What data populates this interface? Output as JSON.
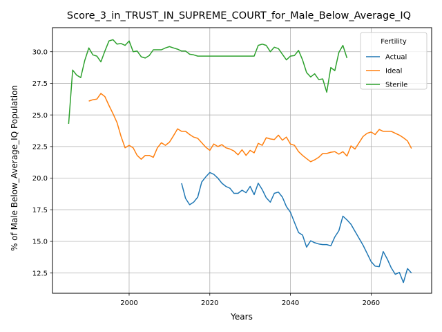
{
  "chart_data": {
    "type": "line",
    "title": "Score_3_in_TRUST_IN_SUPREME_COURT_for_Male_Below_Average_IQ",
    "xlabel": "Years",
    "ylabel": "% of Male Below_Average_IQ Population",
    "xlim": [
      1981,
      2075
    ],
    "ylim": [
      10.9,
      31.9
    ],
    "xticks": [
      2000,
      2020,
      2040,
      2060
    ],
    "yticks": [
      12.5,
      15.0,
      17.5,
      20.0,
      22.5,
      25.0,
      27.5,
      30.0
    ],
    "ytick_labels": [
      "12.5",
      "15.0",
      "17.5",
      "20.0",
      "22.5",
      "25.0",
      "27.5",
      "30.0"
    ],
    "grid": true,
    "legend": {
      "title": "Fertility",
      "placement": "top-right"
    },
    "series": [
      {
        "name": "Actual",
        "color": "#1f77b4",
        "x": [
          2013,
          2014,
          2015,
          2016,
          2017,
          2018,
          2019,
          2020,
          2021,
          2022,
          2023,
          2024,
          2025,
          2026,
          2027,
          2028,
          2029,
          2030,
          2031,
          2032,
          2033,
          2034,
          2035,
          2036,
          2037,
          2038,
          2039,
          2040,
          2041,
          2042,
          2043,
          2044,
          2045,
          2046,
          2047,
          2048,
          2049,
          2050,
          2051,
          2052,
          2053,
          2054,
          2055,
          2056,
          2057,
          2058,
          2059,
          2060,
          2061,
          2062,
          2063,
          2064,
          2065,
          2066,
          2067,
          2068,
          2069,
          2070
        ],
        "values": [
          19.6,
          18.4,
          17.9,
          18.1,
          18.5,
          19.7,
          20.1,
          20.45,
          20.3,
          20.0,
          19.6,
          19.35,
          19.2,
          18.8,
          18.8,
          19.05,
          18.85,
          19.35,
          18.7,
          19.6,
          19.1,
          18.45,
          18.1,
          18.8,
          18.9,
          18.5,
          17.75,
          17.3,
          16.5,
          15.7,
          15.5,
          14.55,
          15.05,
          14.9,
          14.8,
          14.75,
          14.75,
          14.65,
          15.35,
          15.85,
          17.0,
          16.7,
          16.35,
          15.8,
          15.25,
          14.7,
          14.05,
          13.4,
          13.05,
          13.0,
          14.2,
          13.6,
          12.9,
          12.4,
          12.55,
          11.75,
          12.85,
          12.5
        ]
      },
      {
        "name": "Ideal",
        "color": "#ff7f0e",
        "x": [
          1990,
          1991,
          1992,
          1993,
          1994,
          1995,
          1996,
          1997,
          1998,
          1999,
          2000,
          2001,
          2002,
          2003,
          2004,
          2005,
          2006,
          2007,
          2008,
          2009,
          2010,
          2011,
          2012,
          2013,
          2014,
          2015,
          2016,
          2017,
          2018,
          2019,
          2020,
          2021,
          2022,
          2023,
          2024,
          2025,
          2026,
          2027,
          2028,
          2029,
          2030,
          2031,
          2032,
          2033,
          2034,
          2035,
          2036,
          2037,
          2038,
          2039,
          2040,
          2041,
          2042,
          2043,
          2044,
          2045,
          2046,
          2047,
          2048,
          2049,
          2050,
          2051,
          2052,
          2053,
          2054,
          2055,
          2056,
          2057,
          2058,
          2059,
          2060,
          2061,
          2062,
          2063,
          2064,
          2065,
          2066,
          2067,
          2068,
          2069,
          2070
        ],
        "values": [
          26.1,
          26.2,
          26.25,
          26.7,
          26.45,
          25.75,
          25.1,
          24.4,
          23.3,
          22.4,
          22.6,
          22.4,
          21.8,
          21.5,
          21.8,
          21.8,
          21.65,
          22.4,
          22.8,
          22.6,
          22.85,
          23.35,
          23.9,
          23.7,
          23.7,
          23.45,
          23.25,
          23.15,
          22.8,
          22.45,
          22.2,
          22.7,
          22.5,
          22.65,
          22.4,
          22.3,
          22.15,
          21.85,
          22.25,
          21.8,
          22.2,
          22.0,
          22.75,
          22.6,
          23.2,
          23.1,
          23.05,
          23.4,
          23.0,
          23.25,
          22.7,
          22.6,
          22.1,
          21.8,
          21.55,
          21.3,
          21.45,
          21.65,
          21.95,
          21.95,
          22.05,
          22.1,
          21.9,
          22.1,
          21.75,
          22.55,
          22.3,
          22.8,
          23.3,
          23.55,
          23.65,
          23.45,
          23.85,
          23.7,
          23.7,
          23.7,
          23.55,
          23.4,
          23.2,
          22.95,
          22.35
        ]
      },
      {
        "name": "Sterile",
        "color": "#2ca02c",
        "x": [
          1985,
          1986,
          1987,
          1988,
          1989,
          1990,
          1991,
          1992,
          1993,
          1994,
          1995,
          1996,
          1997,
          1998,
          1999,
          2000,
          2001,
          2002,
          2003,
          2004,
          2005,
          2006,
          2007,
          2008,
          2009,
          2010,
          2011,
          2012,
          2013,
          2014,
          2015,
          2016,
          2017,
          2018,
          2019,
          2020,
          2021,
          2022,
          2023,
          2024,
          2025,
          2026,
          2027,
          2028,
          2029,
          2030,
          2031,
          2032,
          2033,
          2034,
          2035,
          2036,
          2037,
          2038,
          2039,
          2040,
          2041,
          2042,
          2043,
          2044,
          2045,
          2046,
          2047,
          2048,
          2049,
          2050,
          2051,
          2052,
          2053,
          2054
        ],
        "values": [
          24.3,
          28.55,
          28.15,
          27.95,
          29.3,
          30.3,
          29.75,
          29.65,
          29.2,
          30.05,
          30.85,
          30.95,
          30.6,
          30.65,
          30.5,
          30.85,
          30.0,
          30.05,
          29.6,
          29.5,
          29.7,
          30.15,
          30.15,
          30.15,
          30.3,
          30.4,
          30.3,
          30.2,
          30.05,
          30.05,
          29.8,
          29.75,
          29.65,
          29.65,
          29.65,
          29.65,
          29.65,
          29.65,
          29.65,
          29.65,
          29.65,
          29.65,
          29.65,
          29.65,
          29.65,
          29.65,
          29.65,
          30.5,
          30.6,
          30.5,
          30.0,
          30.35,
          30.25,
          29.8,
          29.35,
          29.65,
          29.7,
          30.1,
          29.35,
          28.35,
          28.0,
          28.25,
          27.8,
          27.85,
          26.8,
          28.75,
          28.5,
          29.95,
          30.5,
          29.5
        ]
      }
    ]
  }
}
